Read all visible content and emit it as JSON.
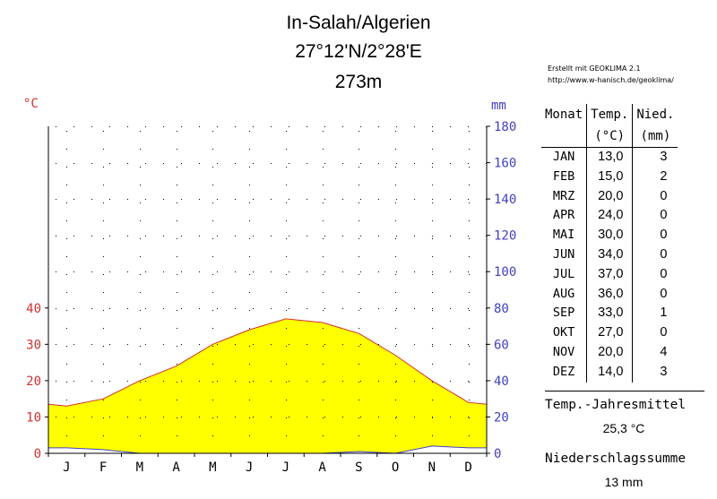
{
  "header": {
    "title": "In-Salah/Algerien",
    "coords": "27°12'N/2°28'E",
    "elevation": "273m",
    "credit1": "Erstellt mit GEOKLIMA 2.1",
    "credit2": "http://www.w-hanisch.de/geoklima/"
  },
  "units": {
    "temp": "°C",
    "precip": "mm"
  },
  "table": {
    "headers": {
      "month": "Monat",
      "temp": "Temp.",
      "temp_unit": "(°C)",
      "precip": "Nied.",
      "precip_unit": "(mm)"
    },
    "rows": [
      {
        "m": "JAN",
        "t": "13,0",
        "p": "3"
      },
      {
        "m": "FEB",
        "t": "15,0",
        "p": "2"
      },
      {
        "m": "MRZ",
        "t": "20,0",
        "p": "0"
      },
      {
        "m": "APR",
        "t": "24,0",
        "p": "0"
      },
      {
        "m": "MAI",
        "t": "30,0",
        "p": "0"
      },
      {
        "m": "JUN",
        "t": "34,0",
        "p": "0"
      },
      {
        "m": "JUL",
        "t": "37,0",
        "p": "0"
      },
      {
        "m": "AUG",
        "t": "36,0",
        "p": "0"
      },
      {
        "m": "SEP",
        "t": "33,0",
        "p": "1"
      },
      {
        "m": "OKT",
        "t": "27,0",
        "p": "0"
      },
      {
        "m": "NOV",
        "t": "20,0",
        "p": "4"
      },
      {
        "m": "DEZ",
        "t": "14,0",
        "p": "3"
      }
    ]
  },
  "summary": {
    "temp_label": "Temp.-Jahresmittel",
    "temp_value": "25,3 °C",
    "precip_label": "Niederschlagssumme",
    "precip_value": "13 mm"
  },
  "chart_data": {
    "type": "area",
    "categories": [
      "J",
      "F",
      "M",
      "A",
      "M",
      "J",
      "J",
      "A",
      "S",
      "O",
      "N",
      "D"
    ],
    "series": [
      {
        "values": [
          13,
          15,
          20,
          24,
          30,
          34,
          37,
          36,
          33,
          27,
          20,
          14
        ],
        "axis": "left",
        "fill": "#ffff00",
        "line": "#d03030"
      },
      {
        "values": [
          3,
          2,
          0,
          0,
          0,
          0,
          0,
          0,
          1,
          0,
          4,
          3
        ],
        "axis": "right",
        "fill": "#ffffff",
        "line": "#4040c0"
      }
    ],
    "y_left": {
      "ticks": [
        0,
        10,
        20,
        30,
        40
      ],
      "range": [
        0,
        90
      ],
      "color": "#d03030"
    },
    "y_right": {
      "ticks": [
        0,
        20,
        40,
        60,
        80,
        100,
        120,
        140,
        160,
        180
      ],
      "range": [
        0,
        180
      ],
      "color": "#4040c0"
    },
    "grid": "dotted"
  }
}
